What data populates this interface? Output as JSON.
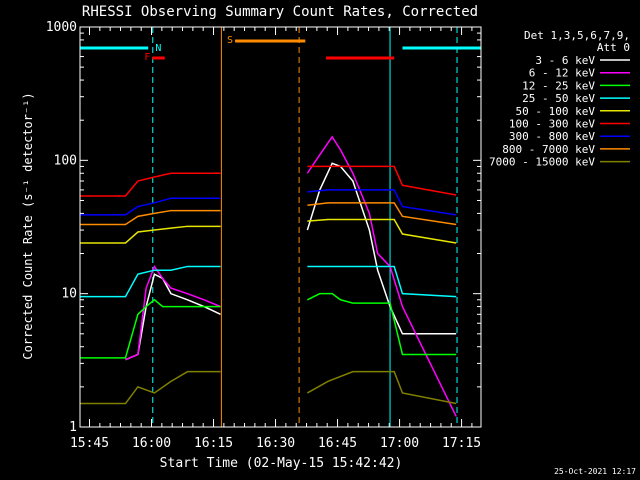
{
  "chart_data": {
    "type": "line",
    "title": "RHESSI Observing Summary Count Rates, Corrected",
    "xlabel": "Start Time (02-May-15 15:42:42)",
    "ylabel": "Corrected Count Rate (s⁻¹ detector⁻¹)",
    "y_scale": "log",
    "ylim": [
      1,
      1000
    ],
    "xlim_minutes_after_start": [
      0,
      97
    ],
    "x_tick_labels": [
      "15:45",
      "16:00",
      "16:15",
      "16:30",
      "16:45",
      "17:00",
      "17:15"
    ],
    "x_tick_minutes": [
      2.3,
      17.3,
      32.3,
      47.3,
      62.3,
      77.3,
      92.3
    ],
    "y_tick_labels": [
      "1",
      "10",
      "100",
      "1000"
    ],
    "y_tick_values": [
      1,
      10,
      100,
      1000
    ],
    "legend_header": [
      "Det 1,3,5,6,7,9,",
      "Att 0"
    ],
    "legend_position": "right",
    "timestamp": "25-Oct-2021 12:17",
    "flags": [
      {
        "label": "",
        "color": "#00ffff",
        "start": 0,
        "end": 16.5
      },
      {
        "label": "N",
        "color": "#00ffff",
        "start": 17.5,
        "end": 17.5
      },
      {
        "label": "F",
        "color": "#ff0000",
        "start": 17.5,
        "end": 20.5
      },
      {
        "label": "S",
        "color": "#ff8c00",
        "start": 37.5,
        "end": 54.5
      },
      {
        "label": "",
        "color": "#ff0000",
        "start": 59.5,
        "end": 76.0
      },
      {
        "label": "",
        "color": "#00ffff",
        "start": 78.0,
        "end": 97
      }
    ],
    "vlines": [
      {
        "t": 17.6,
        "color": "#00ffff",
        "style": "dashed"
      },
      {
        "t": 34.2,
        "color": "#ff8c00",
        "style": "solid"
      },
      {
        "t": 53.0,
        "color": "#ff8c00",
        "style": "dashed"
      },
      {
        "t": 75.0,
        "color": "#00ffff",
        "style": "solid"
      },
      {
        "t": 91.2,
        "color": "#00ffff",
        "style": "dashed"
      }
    ],
    "data_gaps": [
      [
        34.2,
        53.0
      ]
    ],
    "series": [
      {
        "name": "3 - 6 keV",
        "color": "#ffffff",
        "x": [
          11,
          14,
          16,
          18,
          20,
          22,
          26,
          30,
          34,
          53,
          55,
          58,
          61,
          63,
          66,
          70,
          72,
          75,
          78,
          91
        ],
        "y": [
          3.2,
          3.5,
          8,
          14,
          13,
          10,
          9,
          8,
          7,
          null,
          30,
          60,
          95,
          90,
          70,
          30,
          15,
          8,
          5,
          5
        ]
      },
      {
        "name": "6 - 12 keV",
        "color": "#ff00ff",
        "x": [
          11,
          14,
          16,
          18,
          20,
          22,
          26,
          30,
          34,
          53,
          55,
          58,
          61,
          63,
          66,
          70,
          72,
          75,
          78,
          91
        ],
        "y": [
          3.2,
          3.5,
          11,
          16,
          13,
          11,
          10,
          9,
          8,
          null,
          80,
          110,
          150,
          120,
          80,
          40,
          20,
          16,
          8,
          1.2
        ]
      },
      {
        "name": "12 - 25 keV",
        "color": "#00ff00",
        "x": [
          0,
          11,
          14,
          16,
          18,
          20,
          22,
          26,
          30,
          34,
          53,
          55,
          58,
          61,
          63,
          66,
          70,
          72,
          75,
          78,
          91
        ],
        "y": [
          3.3,
          3.3,
          7,
          8,
          9,
          8,
          8,
          8,
          8,
          8,
          null,
          9,
          10,
          10,
          9,
          8.5,
          8.5,
          8.5,
          8.5,
          3.5,
          3.5
        ]
      },
      {
        "name": "25 - 50 keV",
        "color": "#00ffff",
        "x": [
          0,
          11,
          14,
          18,
          22,
          26,
          30,
          34,
          53,
          55,
          60,
          66,
          72,
          76,
          78,
          91
        ],
        "y": [
          9.5,
          9.5,
          14,
          15,
          15,
          16,
          16,
          16,
          null,
          16,
          16,
          16,
          16,
          16,
          10,
          9.5
        ]
      },
      {
        "name": "50 - 100 keV",
        "color": "#e6e600",
        "x": [
          0,
          11,
          14,
          18,
          22,
          26,
          30,
          34,
          53,
          55,
          60,
          66,
          72,
          76,
          78,
          91
        ],
        "y": [
          24,
          24,
          29,
          30,
          31,
          32,
          32,
          32,
          null,
          35,
          36,
          36,
          36,
          36,
          28,
          24
        ]
      },
      {
        "name": "100 - 300 keV",
        "color": "#ff0000",
        "x": [
          0,
          11,
          14,
          18,
          22,
          26,
          30,
          34,
          53,
          55,
          60,
          66,
          72,
          76,
          78,
          91
        ],
        "y": [
          54,
          54,
          70,
          75,
          80,
          80,
          80,
          80,
          null,
          90,
          90,
          90,
          90,
          90,
          65,
          55
        ]
      },
      {
        "name": "300 - 800 keV",
        "color": "#0000ff",
        "x": [
          0,
          11,
          14,
          18,
          22,
          26,
          30,
          34,
          53,
          55,
          60,
          66,
          72,
          76,
          78,
          91
        ],
        "y": [
          39,
          39,
          45,
          48,
          52,
          52,
          52,
          52,
          null,
          58,
          60,
          60,
          60,
          60,
          45,
          39
        ]
      },
      {
        "name": "800 - 7000 keV",
        "color": "#ff8c00",
        "x": [
          0,
          11,
          14,
          18,
          22,
          26,
          30,
          34,
          53,
          55,
          60,
          66,
          72,
          76,
          78,
          91
        ],
        "y": [
          33,
          33,
          38,
          40,
          42,
          42,
          42,
          42,
          null,
          46,
          48,
          48,
          48,
          48,
          38,
          33
        ]
      },
      {
        "name": "7000 - 15000 keV",
        "color": "#808000",
        "x": [
          0,
          11,
          14,
          18,
          22,
          26,
          30,
          34,
          53,
          55,
          60,
          66,
          72,
          76,
          78,
          91
        ],
        "y": [
          1.5,
          1.5,
          2,
          1.8,
          2.2,
          2.6,
          2.6,
          2.6,
          null,
          1.8,
          2.2,
          2.6,
          2.6,
          2.6,
          1.8,
          1.5
        ]
      }
    ]
  }
}
